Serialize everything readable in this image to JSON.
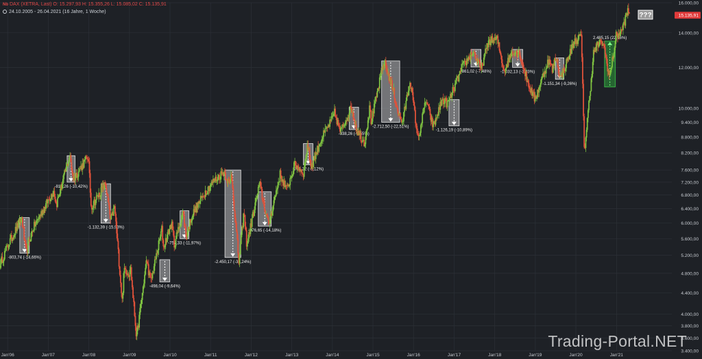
{
  "header": {
    "symbol_line": "DAX (XETRA, Last)  O: 15.297,93  H: 15.355,26  L: 15.085,02  C: 15.135,91",
    "range_line": "24.10.2005 - 26.04.2021   (16 Jahre, 1 Woche)"
  },
  "watermark": "Trading-Portal.NET",
  "chart_data": {
    "type": "candlestick",
    "scale": "log",
    "ylim": [
      3400,
      16000
    ],
    "y_ticks": [
      3400,
      3600,
      3800,
      4000,
      4400,
      4800,
      5200,
      5600,
      6000,
      6400,
      6800,
      7200,
      7600,
      8200,
      8800,
      9400,
      10000,
      12000,
      14000,
      16000
    ],
    "y_tick_labels": [
      "3.400,00",
      "3.600,00",
      "3.800,00",
      "4.000,00",
      "4.400,00",
      "4.800,00",
      "5.200,00",
      "5.600,00",
      "6.000,00",
      "6.400,00",
      "6.800,00",
      "7.200,00",
      "7.600,00",
      "8.200,00",
      "8.800,00",
      "9.400,00",
      "10.000,00",
      "12.000,00",
      "14.000,00",
      "16.000,00"
    ],
    "x_ticks": [
      "Jan'06",
      "Jan'07",
      "Jan'08",
      "Jan'09",
      "Jan'10",
      "Jan'11",
      "Jan'12",
      "Jan'13",
      "Jan'14",
      "Jan'15",
      "Jan'16",
      "Jan'17",
      "Jan'18",
      "Jan'19",
      "Jan'20",
      "Jan'21"
    ],
    "x_range": [
      "2005-10-24",
      "2021-04-26"
    ],
    "last_price_label": "15.135,91",
    "question_label": "???",
    "series_anchors": [
      [
        "2005-10-24",
        5000
      ],
      [
        "2006-01-15",
        5500
      ],
      [
        "2006-05-08",
        6150
      ],
      [
        "2006-06-14",
        5250
      ],
      [
        "2006-08-15",
        5850
      ],
      [
        "2007-02-20",
        6950
      ],
      [
        "2007-03-14",
        6500
      ],
      [
        "2007-07-13",
        8100
      ],
      [
        "2007-08-16",
        7300
      ],
      [
        "2007-12-27",
        8100
      ],
      [
        "2008-01-22",
        6450
      ],
      [
        "2008-05-30",
        7150
      ],
      [
        "2008-07-15",
        6050
      ],
      [
        "2008-08-20",
        6450
      ],
      [
        "2008-10-27",
        4250
      ],
      [
        "2008-11-15",
        4900
      ],
      [
        "2008-12-31",
        4800
      ],
      [
        "2009-01-08",
        5000
      ],
      [
        "2009-03-06",
        3600
      ],
      [
        "2009-06-05",
        5100
      ],
      [
        "2009-07-10",
        4600
      ],
      [
        "2009-10-20",
        5850
      ],
      [
        "2009-11-02",
        5400
      ],
      [
        "2010-01-15",
        6000
      ],
      [
        "2010-02-08",
        5450
      ],
      [
        "2010-04-27",
        6300
      ],
      [
        "2010-05-25",
        5650
      ],
      [
        "2010-07-15",
        6200
      ],
      [
        "2010-11-15",
        6900
      ],
      [
        "2011-01-20",
        7200
      ],
      [
        "2011-05-02",
        7550
      ],
      [
        "2011-06-20",
        7100
      ],
      [
        "2011-07-07",
        7500
      ],
      [
        "2011-09-12",
        5050
      ],
      [
        "2011-10-27",
        6300
      ],
      [
        "2011-11-23",
        5450
      ],
      [
        "2012-03-16",
        7150
      ],
      [
        "2012-06-04",
        5950
      ],
      [
        "2012-09-17",
        7450
      ],
      [
        "2012-11-16",
        6950
      ],
      [
        "2013-01-28",
        7800
      ],
      [
        "2013-04-18",
        7500
      ],
      [
        "2013-05-22",
        8550
      ],
      [
        "2013-06-24",
        7700
      ],
      [
        "2013-09-20",
        8700
      ],
      [
        "2013-12-31",
        9550
      ],
      [
        "2014-01-20",
        9800
      ],
      [
        "2014-03-14",
        9000
      ],
      [
        "2014-06-20",
        10050
      ],
      [
        "2014-08-08",
        9100
      ],
      [
        "2014-10-16",
        8570
      ],
      [
        "2014-12-05",
        10100
      ],
      [
        "2014-12-16",
        9400
      ],
      [
        "2015-04-10",
        12350
      ],
      [
        "2015-06-29",
        10900
      ],
      [
        "2015-08-24",
        9650
      ],
      [
        "2015-09-24",
        9400
      ],
      [
        "2015-12-01",
        11380
      ],
      [
        "2016-02-11",
        8700
      ],
      [
        "2016-04-20",
        10400
      ],
      [
        "2016-06-27",
        9200
      ],
      [
        "2016-09-15",
        10400
      ],
      [
        "2016-11-04",
        10200
      ],
      [
        "2017-03-15",
        12000
      ],
      [
        "2017-06-20",
        12900
      ],
      [
        "2017-08-29",
        11900
      ],
      [
        "2017-11-07",
        13500
      ],
      [
        "2018-01-23",
        13600
      ],
      [
        "2018-03-26",
        11800
      ],
      [
        "2018-06-06",
        12900
      ],
      [
        "2018-08-10",
        12800
      ],
      [
        "2018-10-26",
        11200
      ],
      [
        "2018-12-27",
        10400
      ],
      [
        "2019-04-30",
        12400
      ],
      [
        "2019-06-04",
        11850
      ],
      [
        "2019-07-05",
        12650
      ],
      [
        "2019-08-15",
        11400
      ],
      [
        "2019-12-13",
        13400
      ],
      [
        "2020-02-18",
        13800
      ],
      [
        "2020-03-18",
        8250
      ],
      [
        "2020-06-08",
        12800
      ],
      [
        "2020-07-20",
        13300
      ],
      [
        "2020-09-02",
        13400
      ],
      [
        "2020-10-30",
        11450
      ],
      [
        "2020-12-28",
        13800
      ],
      [
        "2021-02-15",
        14100
      ],
      [
        "2021-04-16",
        15500
      ],
      [
        "2021-04-26",
        15135
      ]
    ],
    "annotations": [
      {
        "label": "-803,74 (-14,66%)",
        "date_start": "2006-04-20",
        "date_end": "2006-07-15",
        "high": 6150,
        "low": 5250,
        "direction": "down"
      },
      {
        "label": "-815,26 (-10,42%)",
        "date_start": "2007-06-20",
        "date_end": "2007-08-30",
        "high": 8100,
        "low": 7200,
        "direction": "down"
      },
      {
        "label": "-1.132,39 (-15,93%)",
        "date_start": "2008-04-20",
        "date_end": "2008-07-15",
        "high": 7150,
        "low": 6000,
        "direction": "down"
      },
      {
        "label": "-498,04 (-9,64%)",
        "date_start": "2009-10-01",
        "date_end": "2009-12-30",
        "high": 5100,
        "low": 4620,
        "direction": "down"
      },
      {
        "label": "-757,33 (-11,97%)",
        "date_start": "2010-04-01",
        "date_end": "2010-06-20",
        "high": 6340,
        "low": 5600,
        "direction": "down"
      },
      {
        "label": "-2.450,17 (-32,24%)",
        "date_start": "2011-05-10",
        "date_end": "2011-09-30",
        "high": 7600,
        "low": 5150,
        "direction": "down"
      },
      {
        "label": "-976,65 (-14,18%)",
        "date_start": "2012-03-05",
        "date_end": "2012-06-30",
        "high": 6900,
        "low": 5920,
        "direction": "down"
      },
      {
        "label": "-768,22 (-8,12%)",
        "date_start": "2013-04-15",
        "date_end": "2013-07-10",
        "high": 8550,
        "low": 7780,
        "direction": "down"
      },
      {
        "label": "-938,26 (-9,55%)",
        "date_start": "2014-06-01",
        "date_end": "2014-08-25",
        "high": 10050,
        "low": 9100,
        "direction": "down"
      },
      {
        "label": "-2.712,50 (-22,51%)",
        "date_start": "2015-03-20",
        "date_end": "2015-08-30",
        "high": 12350,
        "low": 9400,
        "direction": "down"
      },
      {
        "label": "-1.126,19 (-10,89%)",
        "date_start": "2016-11-15",
        "date_end": "2017-02-15",
        "high": 10400,
        "low": 9250,
        "direction": "down"
      },
      {
        "label": "-861,02 (-7,48%)",
        "date_start": "2017-06-01",
        "date_end": "2017-08-30",
        "high": 13000,
        "low": 12020,
        "direction": "down"
      },
      {
        "label": "-1.032,13 (-7,93%)",
        "date_start": "2018-06-10",
        "date_end": "2018-09-10",
        "high": 13000,
        "low": 12000,
        "direction": "down"
      },
      {
        "label": "-1.151,34 (-9,26%)",
        "date_start": "2019-07-01",
        "date_end": "2019-09-15",
        "high": 12520,
        "low": 11380,
        "direction": "down"
      },
      {
        "label": "2.485,15 (22,56%)",
        "date_start": "2020-09-15",
        "date_end": "2020-12-20",
        "high": 13490,
        "low": 11000,
        "direction": "up"
      }
    ],
    "colors": {
      "background": "#1e2126",
      "grid": "#2c3037",
      "up": "#7fc241",
      "down": "#e0523a",
      "annotation_box": "#c8c8c8",
      "annotation_up": "#2e9e3a",
      "last_price": "#e03a3a",
      "axis_text": "#c8ccd2"
    }
  }
}
